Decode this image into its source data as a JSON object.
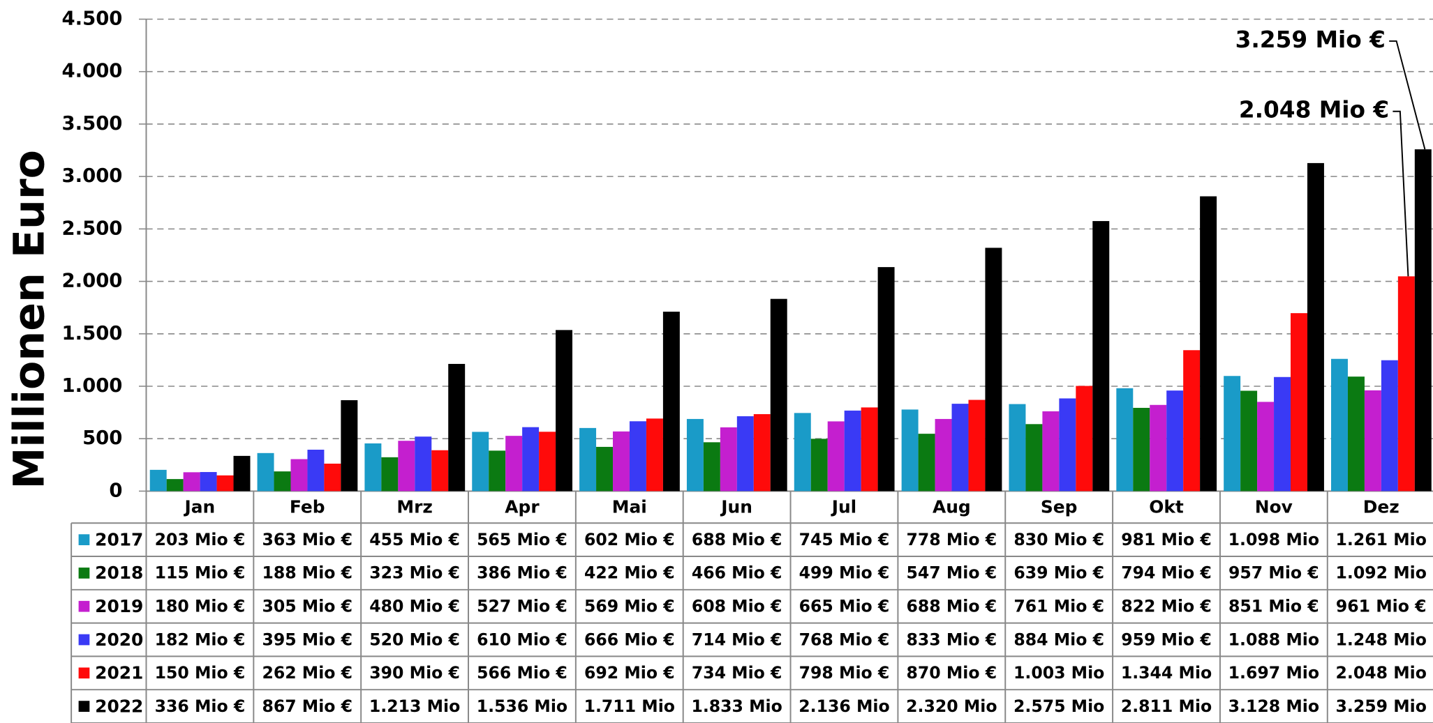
{
  "chart_data": {
    "type": "bar",
    "y_label": "Millionen Euro",
    "categories": [
      "Jan",
      "Feb",
      "Mrz",
      "Apr",
      "Mai",
      "Jun",
      "Jul",
      "Aug",
      "Sep",
      "Okt",
      "Nov",
      "Dez"
    ],
    "ylim": [
      0,
      4500
    ],
    "yticks": [
      0,
      500,
      {
        "value": 1000,
        "label": "1.000"
      },
      {
        "value": 1500,
        "label": "1.500"
      },
      {
        "value": 2000,
        "label": "2.000"
      },
      {
        "value": 2500,
        "label": "2.500"
      },
      {
        "value": 3000,
        "label": "3.000"
      },
      {
        "value": 3500,
        "label": "3.500"
      },
      {
        "value": 4000,
        "label": "4.000"
      },
      {
        "value": 4500,
        "label": "4.500"
      }
    ],
    "grid": true,
    "series": [
      {
        "name": "2017",
        "color": "#1a9bc8",
        "values": [
          203,
          363,
          455,
          565,
          602,
          688,
          745,
          778,
          830,
          981,
          1098,
          1261
        ],
        "value_labels": [
          "203 Mio €",
          "363 Mio €",
          "455 Mio €",
          "565 Mio €",
          "602 Mio €",
          "688 Mio €",
          "745 Mio €",
          "778 Mio €",
          "830 Mio €",
          "981 Mio €",
          "1.098 Mio",
          "1.261 Mio"
        ]
      },
      {
        "name": "2018",
        "color": "#0b7a12",
        "values": [
          115,
          188,
          323,
          386,
          422,
          466,
          499,
          547,
          639,
          794,
          957,
          1092
        ],
        "value_labels": [
          "115 Mio €",
          "188 Mio €",
          "323 Mio €",
          "386 Mio €",
          "422 Mio €",
          "466 Mio €",
          "499 Mio €",
          "547 Mio €",
          "639 Mio €",
          "794 Mio €",
          "957 Mio €",
          "1.092 Mio"
        ]
      },
      {
        "name": "2019",
        "color": "#c41fcf",
        "values": [
          180,
          305,
          480,
          527,
          569,
          608,
          665,
          688,
          761,
          822,
          851,
          961
        ],
        "value_labels": [
          "180 Mio €",
          "305 Mio €",
          "480 Mio €",
          "527 Mio €",
          "569 Mio €",
          "608 Mio €",
          "665 Mio €",
          "688 Mio €",
          "761 Mio €",
          "822 Mio €",
          "851 Mio €",
          "961 Mio €"
        ]
      },
      {
        "name": "2020",
        "color": "#3a3af5",
        "values": [
          182,
          395,
          520,
          610,
          666,
          714,
          768,
          833,
          884,
          959,
          1088,
          1248
        ],
        "value_labels": [
          "182 Mio €",
          "395 Mio €",
          "520 Mio €",
          "610 Mio €",
          "666 Mio €",
          "714 Mio €",
          "768 Mio €",
          "833 Mio €",
          "884 Mio €",
          "959 Mio €",
          "1.088 Mio",
          "1.248 Mio"
        ]
      },
      {
        "name": "2021",
        "color": "#ff0a0a",
        "values": [
          150,
          262,
          390,
          566,
          692,
          734,
          798,
          870,
          1003,
          1344,
          1697,
          2048
        ],
        "value_labels": [
          "150 Mio €",
          "262 Mio €",
          "390 Mio €",
          "566 Mio €",
          "692 Mio €",
          "734 Mio €",
          "798 Mio €",
          "870 Mio €",
          "1.003 Mio",
          "1.344 Mio",
          "1.697 Mio",
          "2.048 Mio"
        ]
      },
      {
        "name": "2022",
        "color": "#000000",
        "values": [
          336,
          867,
          1213,
          1536,
          1711,
          1833,
          2136,
          2320,
          2575,
          2811,
          3128,
          3259
        ],
        "value_labels": [
          "336 Mio €",
          "867 Mio €",
          "1.213 Mio",
          "1.536 Mio",
          "1.711 Mio",
          "1.833 Mio",
          "2.136 Mio",
          "2.320 Mio",
          "2.575 Mio",
          "2.811 Mio",
          "3.128 Mio",
          "3.259 Mio"
        ]
      }
    ],
    "annotations": [
      "3.259 Mio €",
      "2.048 Mio €"
    ]
  }
}
